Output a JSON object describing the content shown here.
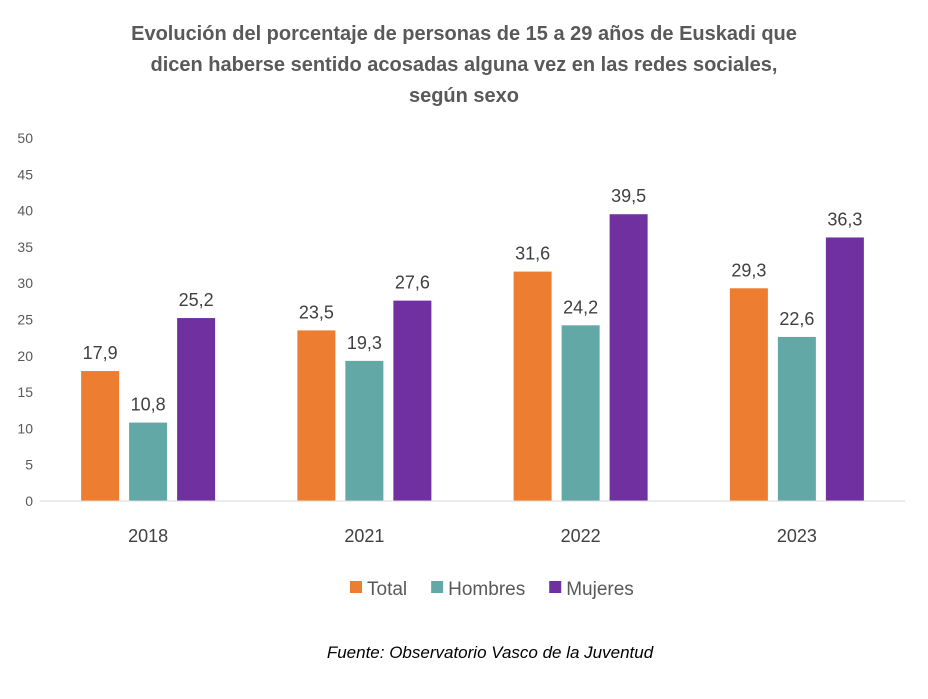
{
  "chart_data": {
    "type": "bar",
    "title": [
      "Evolución del porcentaje de personas de 15 a 29 años de Euskadi que",
      "dicen haberse sentido acosadas alguna vez en las redes sociales,",
      "según sexo"
    ],
    "categories": [
      "2018",
      "2021",
      "2022",
      "2023"
    ],
    "series": [
      {
        "name": "Total",
        "color": "#ED7D31",
        "values": [
          17.9,
          23.5,
          31.6,
          29.3
        ]
      },
      {
        "name": "Hombres",
        "color": "#62A8A6",
        "values": [
          10.8,
          19.3,
          24.2,
          22.6
        ]
      },
      {
        "name": "Mujeres",
        "color": "#7030A0",
        "values": [
          25.2,
          27.6,
          39.5,
          36.3
        ]
      }
    ],
    "ylim": [
      0,
      50
    ],
    "yticks": [
      0,
      5,
      10,
      15,
      20,
      25,
      30,
      35,
      40,
      45,
      50
    ],
    "grid": false,
    "legend": "bottom",
    "decimal_separator": ","
  },
  "source": "Fuente: Observatorio Vasco de la Juventud"
}
